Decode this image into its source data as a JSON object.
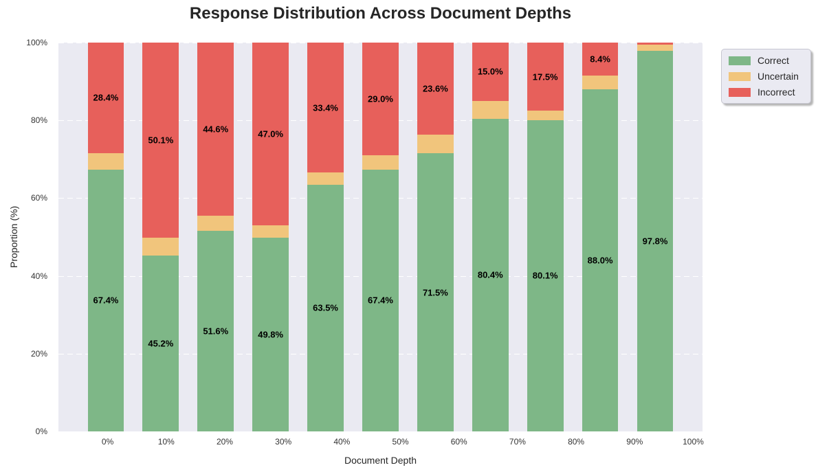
{
  "figure": {
    "title": "Response Distribution Across Document Depths",
    "xlabel": "Document Depth",
    "ylabel": "Proportion (%)"
  },
  "legend": {
    "position": "outside-right-top",
    "items": [
      {
        "label": "Correct",
        "color": "#7eb787"
      },
      {
        "label": "Uncertain",
        "color": "#f1c57c"
      },
      {
        "label": "Incorrect",
        "color": "#e7605b"
      }
    ]
  },
  "chart_data": {
    "type": "bar",
    "stacked": true,
    "title": "Response Distribution Across Document Depths",
    "xlabel": "Document Depth",
    "ylabel": "Proportion (%)",
    "categories": [
      "0%",
      "10%",
      "20%",
      "30%",
      "40%",
      "50%",
      "60%",
      "70%",
      "80%",
      "90%",
      "100%"
    ],
    "series": [
      {
        "name": "Correct",
        "color": "#7eb787",
        "values": [
          67.4,
          45.2,
          51.6,
          49.8,
          63.5,
          67.4,
          71.5,
          80.4,
          80.1,
          88.0,
          97.8
        ],
        "labels": [
          "67.4%",
          "45.2%",
          "51.6%",
          "49.8%",
          "63.5%",
          "67.4%",
          "71.5%",
          "80.4%",
          "80.1%",
          "88.0%",
          "97.8%"
        ]
      },
      {
        "name": "Uncertain",
        "color": "#f1c57c",
        "values": [
          4.2,
          4.7,
          3.8,
          3.2,
          3.1,
          3.6,
          4.9,
          4.6,
          2.4,
          3.6,
          1.7
        ],
        "labels": [
          null,
          null,
          null,
          null,
          null,
          null,
          null,
          null,
          null,
          null,
          null
        ]
      },
      {
        "name": "Incorrect",
        "color": "#e7605b",
        "values": [
          28.4,
          50.1,
          44.6,
          47.0,
          33.4,
          29.0,
          23.6,
          15.0,
          17.5,
          8.4,
          0.5
        ],
        "labels": [
          "28.4%",
          "50.1%",
          "44.6%",
          "47.0%",
          "33.4%",
          "29.0%",
          "23.6%",
          "15.0%",
          "17.5%",
          "8.4%",
          null
        ]
      }
    ],
    "ylim": [
      0,
      100
    ],
    "yticks": [
      {
        "label": "0%",
        "value": 0
      },
      {
        "label": "20%",
        "value": 20
      },
      {
        "label": "40%",
        "value": 40
      },
      {
        "label": "60%",
        "value": 60
      },
      {
        "label": "80%",
        "value": 80
      },
      {
        "label": "100%",
        "value": 100
      }
    ],
    "grid": "horizontal-dashed-white",
    "plot_background": "#eaeaf2",
    "legend_position": "outside-right-top"
  }
}
